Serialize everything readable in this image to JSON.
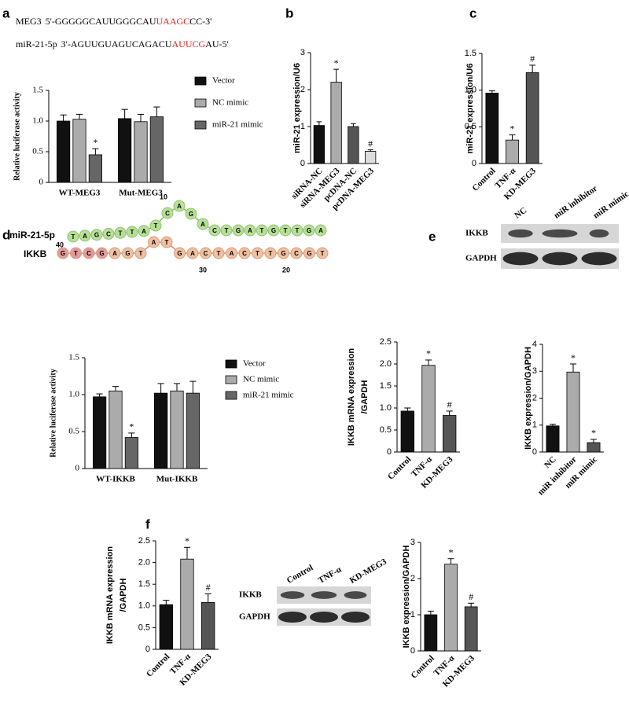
{
  "panel_labels": [
    "a",
    "b",
    "c",
    "d",
    "e",
    "f"
  ],
  "sequence_a": [
    {
      "name": "MEG3",
      "left": "5'-GGGGGCAUUGGGCAU",
      "site": "UAAGC",
      "right": "CC-3'",
      "site_color": "#e0201a"
    },
    {
      "name": "miR-21-5p",
      "left": "3'-AGUUGUAGUCAGACU",
      "site": "AUUCG",
      "right": "AU-5'",
      "site_color": "#e0201a"
    }
  ],
  "duplex_d": {
    "mirna": {
      "name": "miR-21-5p",
      "label_color": "#3aa63a",
      "color": "#b8df98",
      "bases": [
        "T",
        "A",
        "G",
        "C",
        "T",
        "T",
        "A",
        "T",
        "C",
        "A",
        "G",
        "A",
        "C",
        "T",
        "G",
        "A",
        "T",
        "G",
        "T",
        "T",
        "G",
        "A"
      ]
    },
    "target": {
      "name": "IKKB",
      "label_color": "#e8903a",
      "bases": [
        "G",
        "T",
        "C",
        "G",
        "A",
        "G",
        "T",
        "A",
        "T",
        "G",
        "A",
        "C",
        "T",
        "A",
        "C",
        "T",
        "T",
        "G",
        "C",
        "G",
        "T"
      ],
      "colors": [
        "#e59a9a",
        "#e59a9a",
        "#e59a9a",
        "#e59a9a",
        "#f0c0a0",
        "#f0c0a0",
        "#f0c0a0",
        "#f0c0a0",
        "#f0c0a0",
        "#f0c0a0",
        "#f0c0a0",
        "#f0c0a0",
        "#f0c0a0",
        "#f0c0a0",
        "#f0c0a0",
        "#f0c0a0",
        "#f0c0a0",
        "#f0c0a0",
        "#f0c0a0",
        "#f0c0a0",
        "#f0c0a0"
      ]
    },
    "positions": [
      40,
      30,
      20,
      10
    ]
  },
  "blots": [
    {
      "lanes": [
        "NC",
        "miR inhibitor",
        "miR mimic"
      ],
      "rows": [
        "IKKB",
        "GAPDH"
      ]
    },
    {
      "lanes": [
        "Control",
        "TNF-α",
        "KD-MEG3"
      ],
      "rows": [
        "IKKB",
        "GAPDH"
      ]
    }
  ],
  "chart_data": [
    {
      "type": "bar",
      "ylabel": "Relative luciferase activity",
      "categories": [
        "WT-MEG3",
        "Mut-MEG3"
      ],
      "series": [
        {
          "name": "Vector",
          "color": "#111111",
          "values": [
            1.0,
            1.04
          ],
          "errors": [
            0.1,
            0.15
          ],
          "annotations": [
            null,
            null
          ]
        },
        {
          "name": "NC mimic",
          "color": "#ababab",
          "values": [
            1.03,
            0.99
          ],
          "errors": [
            0.08,
            0.12
          ],
          "annotations": [
            null,
            null
          ]
        },
        {
          "name": "miR-21 mimic",
          "color": "#666666",
          "values": [
            0.45,
            1.07
          ],
          "errors": [
            0.1,
            0.16
          ],
          "annotations": [
            "*",
            null
          ]
        }
      ],
      "ylim": [
        0,
        1.5
      ],
      "yticks": [
        0,
        0.5,
        {
          "value": 1,
          "label": "1.0"
        },
        1.5
      ]
    },
    {
      "type": "bar",
      "ylabel": "miR-21 expression/U6",
      "categories": [
        "siRNA-NC",
        "siRNA-MEG3",
        "pcDNA-NC",
        "pcDNA-MEG3"
      ],
      "values": [
        1.03,
        2.2,
        1.0,
        0.33
      ],
      "errors": [
        0.1,
        0.35,
        0.08,
        0.04
      ],
      "annotations": [
        null,
        "*",
        null,
        "#"
      ],
      "colors": [
        "#111111",
        "#ababab",
        "#555555",
        "#dddddd"
      ],
      "ylim": [
        0,
        3
      ],
      "yticks": [
        0,
        1,
        2,
        3
      ]
    },
    {
      "type": "bar",
      "ylabel": "miR-21 expression/U6",
      "categories": [
        "Control",
        "TNF-α",
        "KD-MEG3"
      ],
      "values": [
        0.96,
        0.32,
        1.24
      ],
      "errors": [
        0.03,
        0.07,
        0.1
      ],
      "annotations": [
        null,
        "*",
        "#"
      ],
      "colors": [
        "#111111",
        "#ababab",
        "#555555"
      ],
      "ylim": [
        0,
        1.5
      ],
      "yticks": [
        0,
        0.5,
        {
          "value": 1,
          "label": "1.0"
        },
        1.5
      ]
    },
    {
      "type": "bar",
      "ylabel": "Relative luciferase activity",
      "categories": [
        "WT-IKKB",
        "Mut-IKKB"
      ],
      "series": [
        {
          "name": "Vector",
          "color": "#111111",
          "values": [
            0.97,
            1.02
          ],
          "errors": [
            0.04,
            0.13
          ],
          "annotations": [
            null,
            null
          ]
        },
        {
          "name": "NC mimic",
          "color": "#ababab",
          "values": [
            1.05,
            1.05
          ],
          "errors": [
            0.06,
            0.1
          ],
          "annotations": [
            null,
            null
          ]
        },
        {
          "name": "miR-21 mimic",
          "color": "#666666",
          "values": [
            0.42,
            1.02
          ],
          "errors": [
            0.06,
            0.16
          ],
          "annotations": [
            "*",
            null
          ]
        }
      ],
      "ylim": [
        0,
        1.5
      ],
      "yticks": [
        0,
        0.5,
        {
          "value": 1,
          "label": "1.0"
        },
        1.5
      ]
    },
    {
      "type": "bar",
      "ylabel": [
        "IKKB mRNA expression",
        "/GAPDH"
      ],
      "categories": [
        "Control",
        "TNF-α",
        "KD-MEG3"
      ],
      "values": [
        0.93,
        1.97,
        0.83
      ],
      "errors": [
        0.07,
        0.12,
        0.1
      ],
      "annotations": [
        null,
        "*",
        "#"
      ],
      "colors": [
        "#111111",
        "#ababab",
        "#555555"
      ],
      "ylim": [
        0,
        2.5
      ],
      "yticks": [
        0,
        0.5,
        {
          "value": 1,
          "label": "1.0"
        },
        1.5,
        {
          "value": 2,
          "label": "2.0"
        },
        2.5
      ]
    },
    {
      "type": "bar",
      "ylabel": "IKKB expression/GAPDH",
      "categories": [
        "NC",
        "miR inhibitor",
        "miR mimic"
      ],
      "values": [
        0.97,
        2.97,
        0.35
      ],
      "errors": [
        0.06,
        0.3,
        0.12
      ],
      "annotations": [
        null,
        "*",
        "*"
      ],
      "colors": [
        "#111111",
        "#ababab",
        "#555555"
      ],
      "ylim": [
        0,
        4
      ],
      "yticks": [
        0,
        1,
        2,
        3,
        4
      ]
    },
    {
      "type": "bar",
      "ylabel": [
        "IKKB mRNA expression",
        "/GAPDH"
      ],
      "categories": [
        "Control",
        "TNF-α",
        "KD-MEG3"
      ],
      "values": [
        1.03,
        2.08,
        1.08
      ],
      "errors": [
        0.1,
        0.27,
        0.2
      ],
      "annotations": [
        null,
        "*",
        "#"
      ],
      "colors": [
        "#111111",
        "#ababab",
        "#555555"
      ],
      "ylim": [
        0,
        2.5
      ],
      "yticks": [
        0,
        0.5,
        {
          "value": 1,
          "label": "1.0"
        },
        1.5,
        {
          "value": 2,
          "label": "2.0"
        },
        2.5
      ]
    },
    {
      "type": "bar",
      "ylabel": "IKKB expression/GAPDH",
      "categories": [
        "Control",
        "TNF-α",
        "KD-MEG3"
      ],
      "values": [
        1.0,
        2.4,
        1.22
      ],
      "errors": [
        0.1,
        0.15,
        0.1
      ],
      "annotations": [
        null,
        "*",
        "#"
      ],
      "colors": [
        "#111111",
        "#ababab",
        "#555555"
      ],
      "ylim": [
        0,
        3
      ],
      "yticks": [
        0,
        1,
        2,
        3
      ]
    }
  ]
}
